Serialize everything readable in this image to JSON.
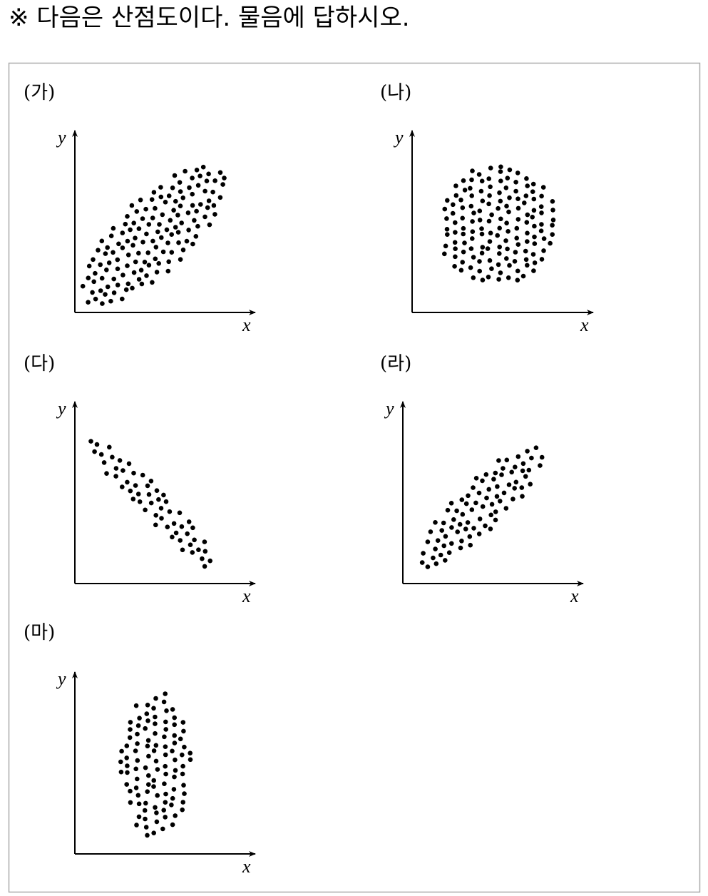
{
  "header": {
    "title": "※ 다음은 산점도이다. 물음에 답하시오."
  },
  "panels": [
    {
      "label": "(가)",
      "x_label": "x",
      "y_label": "y"
    },
    {
      "label": "(나)",
      "x_label": "x",
      "y_label": "y"
    },
    {
      "label": "(다)",
      "x_label": "x",
      "y_label": "y"
    },
    {
      "label": "(라)",
      "x_label": "x",
      "y_label": "y"
    },
    {
      "label": "(마)",
      "x_label": "x",
      "y_label": "y"
    }
  ]
}
